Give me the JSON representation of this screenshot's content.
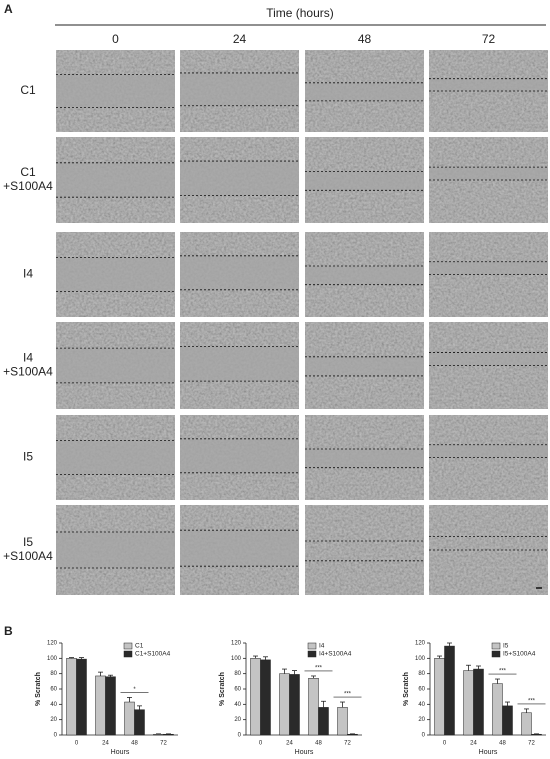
{
  "panel_a": {
    "label": "A",
    "header": "Time (hours)",
    "columns": [
      "0",
      "24",
      "48",
      "72"
    ],
    "rows": [
      [
        "C1"
      ],
      [
        "C1",
        "+S100A4"
      ],
      [
        "I4"
      ],
      [
        "I4",
        "+S100A4"
      ],
      [
        "I5"
      ],
      [
        "I5",
        "+S100A4"
      ]
    ]
  },
  "panel_b": {
    "label": "B"
  },
  "chart_data": [
    {
      "type": "bar",
      "ylabel": "% Scratch",
      "xlabel": "Hours",
      "categories": [
        "0",
        "24",
        "48",
        "72"
      ],
      "ylim": [
        0,
        120
      ],
      "yticks": [
        0,
        20,
        40,
        60,
        80,
        100,
        120
      ],
      "series": [
        {
          "name": "C1",
          "color": "#c4c4c4",
          "values": [
            100,
            77,
            43,
            1
          ],
          "errors": [
            1,
            5,
            6,
            0.5
          ]
        },
        {
          "name": "C1+S100A4",
          "color": "#2a2a2a",
          "values": [
            99,
            76,
            33,
            1
          ],
          "errors": [
            2,
            2,
            5,
            0.5
          ]
        }
      ],
      "annotations": [
        {
          "text": "*",
          "at": "48"
        }
      ]
    },
    {
      "type": "bar",
      "ylabel": "% Scratch",
      "xlabel": "Hours",
      "categories": [
        "0",
        "24",
        "48",
        "72"
      ],
      "ylim": [
        0,
        120
      ],
      "yticks": [
        0,
        20,
        40,
        60,
        80,
        100,
        120
      ],
      "series": [
        {
          "name": "I4",
          "color": "#c4c4c4",
          "values": [
            100,
            80,
            74,
            36
          ],
          "errors": [
            3,
            6,
            3,
            7
          ]
        },
        {
          "name": "I4+S100A4",
          "color": "#2a2a2a",
          "values": [
            98,
            79,
            36,
            1
          ],
          "errors": [
            4,
            5,
            8,
            0.5
          ]
        }
      ],
      "annotations": [
        {
          "text": "***",
          "at": "48"
        },
        {
          "text": "***",
          "at": "72"
        }
      ]
    },
    {
      "type": "bar",
      "ylabel": "% Scratch",
      "xlabel": "Hours",
      "categories": [
        "0",
        "24",
        "48",
        "72"
      ],
      "ylim": [
        0,
        120
      ],
      "yticks": [
        0,
        20,
        40,
        60,
        80,
        100,
        120
      ],
      "series": [
        {
          "name": "I5",
          "color": "#c4c4c4",
          "values": [
            100,
            84,
            67,
            29
          ],
          "errors": [
            3,
            7,
            6,
            5
          ]
        },
        {
          "name": "I5+S100A4",
          "color": "#2a2a2a",
          "values": [
            116,
            86,
            38,
            1
          ],
          "errors": [
            4,
            4,
            5,
            0.5
          ]
        }
      ],
      "annotations": [
        {
          "text": "***",
          "at": "48"
        },
        {
          "text": "***",
          "at": "72"
        }
      ]
    }
  ]
}
